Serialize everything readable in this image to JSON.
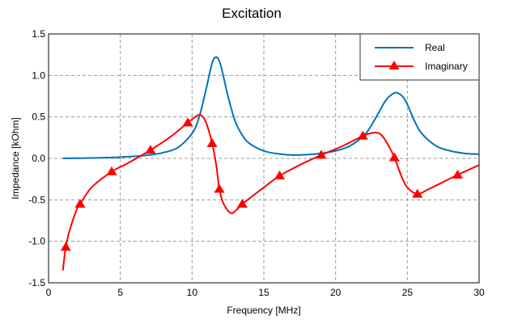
{
  "chart_data": {
    "type": "line",
    "title": "Excitation",
    "xlabel": "Frequency [MHz]",
    "ylabel": "Impedance [kOhm]",
    "xlim": [
      0,
      30
    ],
    "ylim": [
      -1.5,
      1.5
    ],
    "xticks": [
      0,
      5,
      10,
      15,
      20,
      25,
      30
    ],
    "xtick_labels": [
      "0",
      "5",
      "10",
      "15",
      "20",
      "25",
      "30"
    ],
    "yticks": [
      1.5,
      1.0,
      0.5,
      0.0,
      -0.5,
      -1.0,
      -1.5
    ],
    "ytick_labels": [
      "1.5",
      "1.0",
      "0.5",
      "0.0",
      "-0.5",
      "-1.0",
      "-1.5"
    ],
    "grid": true,
    "legend_position": "top-right",
    "series": [
      {
        "name": "Real",
        "color": "#0072BD",
        "marker": "none",
        "x": [
          1,
          3,
          5,
          7,
          8,
          9,
          10,
          10.5,
          11,
          11.4,
          11.7,
          12,
          12.5,
          13,
          13.5,
          14,
          15,
          16,
          17,
          18,
          19,
          20,
          21,
          22,
          22.5,
          23,
          23.5,
          24,
          24.3,
          24.7,
          25,
          25.5,
          26,
          27,
          28,
          29,
          30
        ],
        "y": [
          0,
          0.005,
          0.015,
          0.04,
          0.07,
          0.13,
          0.3,
          0.5,
          0.85,
          1.15,
          1.22,
          1.12,
          0.75,
          0.45,
          0.28,
          0.18,
          0.09,
          0.055,
          0.04,
          0.045,
          0.06,
          0.09,
          0.15,
          0.28,
          0.4,
          0.55,
          0.7,
          0.78,
          0.79,
          0.74,
          0.65,
          0.45,
          0.3,
          0.15,
          0.09,
          0.06,
          0.05
        ]
      },
      {
        "name": "Imaginary",
        "color": "#FF0000",
        "marker": "triangle",
        "x": [
          1,
          1.2,
          1.5,
          2,
          2.2,
          3,
          4.4,
          5.5,
          7.1,
          8.5,
          9.7,
          10.4,
          10.7,
          11,
          11.4,
          11.7,
          11.9,
          12.2,
          12.7,
          13.1,
          13.5,
          15,
          16.1,
          17.5,
          19,
          20.5,
          21.9,
          22.7,
          23.2,
          23.7,
          24.1,
          24.6,
          25,
          25.7,
          26.5,
          28.5,
          30
        ],
        "y": [
          -1.35,
          -1.07,
          -0.85,
          -0.6,
          -0.55,
          -0.35,
          -0.16,
          -0.06,
          0.1,
          0.26,
          0.43,
          0.52,
          0.51,
          0.42,
          0.18,
          -0.1,
          -0.37,
          -0.55,
          -0.66,
          -0.62,
          -0.55,
          -0.35,
          -0.21,
          -0.08,
          0.04,
          0.15,
          0.27,
          0.31,
          0.28,
          0.15,
          0.01,
          -0.22,
          -0.35,
          -0.43,
          -0.37,
          -0.2,
          -0.08
        ],
        "marker_x": [
          1.2,
          2.2,
          4.4,
          7.1,
          9.7,
          11.4,
          11.9,
          13.5,
          16.1,
          19,
          21.9,
          24.1,
          25.7,
          28.5
        ],
        "marker_y": [
          -1.07,
          -0.55,
          -0.16,
          0.1,
          0.43,
          0.18,
          -0.37,
          -0.55,
          -0.21,
          0.04,
          0.27,
          0.01,
          -0.43,
          -0.2
        ]
      }
    ]
  }
}
